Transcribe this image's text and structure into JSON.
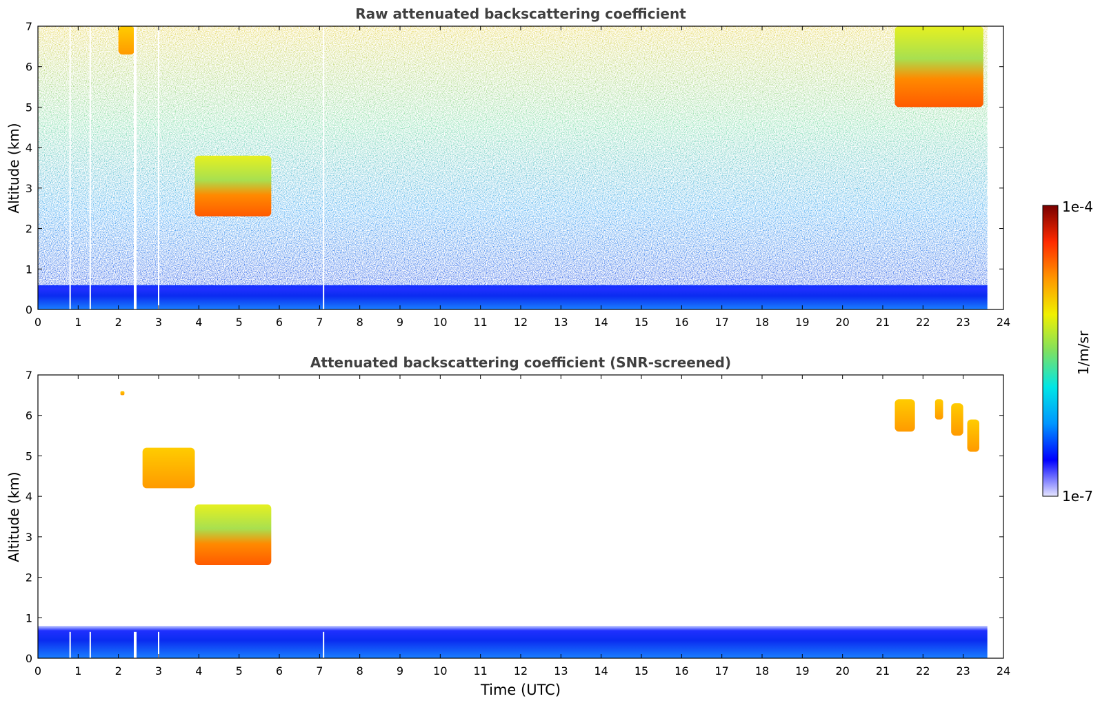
{
  "chart_data": [
    {
      "type": "heatmap",
      "title": "Raw attenuated backscattering coefficient",
      "xlabel": "",
      "ylabel": "Altitude (km)",
      "xlim": [
        0,
        24
      ],
      "ylim": [
        0,
        7
      ],
      "xticks": [
        "0",
        "1",
        "2",
        "3",
        "4",
        "5",
        "6",
        "7",
        "8",
        "9",
        "10",
        "11",
        "12",
        "13",
        "14",
        "15",
        "16",
        "17",
        "18",
        "19",
        "20",
        "21",
        "22",
        "23",
        "24"
      ],
      "yticks": [
        "0",
        "1",
        "2",
        "3",
        "4",
        "5",
        "6",
        "7"
      ],
      "data_end_time": 23.6,
      "missing_data_times": [
        0.8,
        1.3,
        2.4,
        3.0,
        7.1
      ],
      "features": [
        {
          "feature": "boundary layer",
          "start": 0,
          "end": 23.6,
          "base_km": 0,
          "top_km": 0.6
        },
        {
          "feature": "cloud",
          "start": 3.9,
          "end": 5.8,
          "base_km": 2.3,
          "top_km": 3.8
        },
        {
          "feature": "cloud",
          "start": 2.0,
          "end": 2.4,
          "base_km": 6.3,
          "top_km": 7.0
        },
        {
          "feature": "cloud",
          "start": 21.3,
          "end": 23.5,
          "base_km": 5.0,
          "top_km": 7.0
        }
      ]
    },
    {
      "type": "heatmap",
      "title": "Attenuated backscattering coefficient (SNR-screened)",
      "xlabel": "Time (UTC)",
      "ylabel": "Altitude (km)",
      "xlim": [
        0,
        24
      ],
      "ylim": [
        0,
        7
      ],
      "xticks": [
        "0",
        "1",
        "2",
        "3",
        "4",
        "5",
        "6",
        "7",
        "8",
        "9",
        "10",
        "11",
        "12",
        "13",
        "14",
        "15",
        "16",
        "17",
        "18",
        "19",
        "20",
        "21",
        "22",
        "23",
        "24"
      ],
      "yticks": [
        "0",
        "1",
        "2",
        "3",
        "4",
        "5",
        "6",
        "7"
      ],
      "data_end_time": 23.6,
      "missing_data_times": [
        0.8,
        1.3,
        2.4,
        3.0,
        7.1
      ],
      "features": [
        {
          "feature": "boundary layer",
          "start": 0,
          "end": 23.6,
          "base_km": 0,
          "top_km": 0.8
        },
        {
          "feature": "cloud",
          "start": 3.9,
          "end": 5.8,
          "base_km": 2.3,
          "top_km": 3.8
        },
        {
          "feature": "cloud",
          "start": 2.6,
          "end": 3.9,
          "base_km": 4.2,
          "top_km": 5.2
        },
        {
          "feature": "cloud",
          "start": 2.05,
          "end": 2.15,
          "base_km": 6.5,
          "top_km": 6.6
        },
        {
          "feature": "cloud",
          "start": 21.3,
          "end": 21.8,
          "base_km": 5.6,
          "top_km": 6.4
        },
        {
          "feature": "cloud",
          "start": 22.3,
          "end": 22.5,
          "base_km": 5.9,
          "top_km": 6.4
        },
        {
          "feature": "cloud",
          "start": 22.7,
          "end": 23.0,
          "base_km": 5.5,
          "top_km": 6.3
        },
        {
          "feature": "cloud",
          "start": 23.1,
          "end": 23.4,
          "base_km": 5.1,
          "top_km": 5.9
        }
      ]
    }
  ],
  "colorbar": {
    "label": "1/m/sr",
    "max_label": "1e-4",
    "min_label": "1e-7",
    "colors": [
      "#e6e6ff",
      "#0000ff",
      "#0096ff",
      "#00e6e6",
      "#7fe060",
      "#f0f000",
      "#ff9600",
      "#ff2a00",
      "#780000"
    ]
  }
}
